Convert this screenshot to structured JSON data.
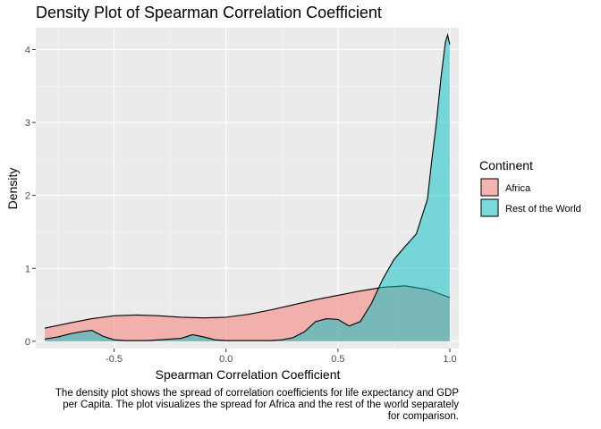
{
  "chart_data": {
    "type": "area",
    "title": "Density Plot of Spearman Correlation Coefficient",
    "xlabel": "Spearman Correlation Coefficient",
    "ylabel": "Density",
    "xlim": [
      -0.85,
      1.04
    ],
    "ylim": [
      -0.1,
      4.3
    ],
    "x_ticks": [
      -0.5,
      0.0,
      0.5,
      1.0
    ],
    "x_tick_labels": [
      "-0.5",
      "0.0",
      "0.5",
      "1.0"
    ],
    "y_ticks": [
      0,
      1,
      2,
      3,
      4
    ],
    "y_tick_labels": [
      "0",
      "1",
      "2",
      "3",
      "4"
    ],
    "grid": true,
    "legend": {
      "title": "Continent",
      "position": "right"
    },
    "series": [
      {
        "name": "Africa",
        "color": "#F8766D",
        "x": [
          -0.81,
          -0.7,
          -0.6,
          -0.5,
          -0.4,
          -0.3,
          -0.2,
          -0.1,
          0.0,
          0.1,
          0.2,
          0.3,
          0.4,
          0.5,
          0.6,
          0.7,
          0.8,
          0.9,
          1.0
        ],
        "y": [
          0.18,
          0.25,
          0.31,
          0.35,
          0.36,
          0.35,
          0.33,
          0.32,
          0.33,
          0.37,
          0.43,
          0.5,
          0.57,
          0.63,
          0.69,
          0.74,
          0.76,
          0.71,
          0.6
        ]
      },
      {
        "name": "Rest of the World",
        "color": "#00BFC4",
        "x": [
          -0.81,
          -0.75,
          -0.7,
          -0.65,
          -0.6,
          -0.55,
          -0.5,
          -0.45,
          -0.4,
          -0.35,
          -0.3,
          -0.25,
          -0.2,
          -0.15,
          -0.1,
          -0.05,
          0.0,
          0.05,
          0.1,
          0.15,
          0.2,
          0.25,
          0.3,
          0.35,
          0.4,
          0.45,
          0.5,
          0.55,
          0.6,
          0.65,
          0.7,
          0.75,
          0.8,
          0.85,
          0.9,
          0.92,
          0.94,
          0.96,
          0.98,
          0.99,
          1.0
        ],
        "y": [
          0.03,
          0.06,
          0.1,
          0.13,
          0.15,
          0.07,
          0.02,
          0.01,
          0.01,
          0.01,
          0.02,
          0.03,
          0.04,
          0.09,
          0.06,
          0.02,
          0.01,
          0.01,
          0.01,
          0.01,
          0.01,
          0.02,
          0.05,
          0.13,
          0.27,
          0.31,
          0.3,
          0.21,
          0.27,
          0.52,
          0.85,
          1.12,
          1.3,
          1.47,
          1.95,
          2.5,
          3.0,
          3.6,
          4.1,
          4.2,
          4.07
        ]
      }
    ],
    "caption": [
      "The density plot shows the spread of correlation coefficients for life expectancy and GDP",
      "per Capita. The plot visualizes the spread for Africa and the rest of the world separately",
      "for comparison."
    ]
  }
}
